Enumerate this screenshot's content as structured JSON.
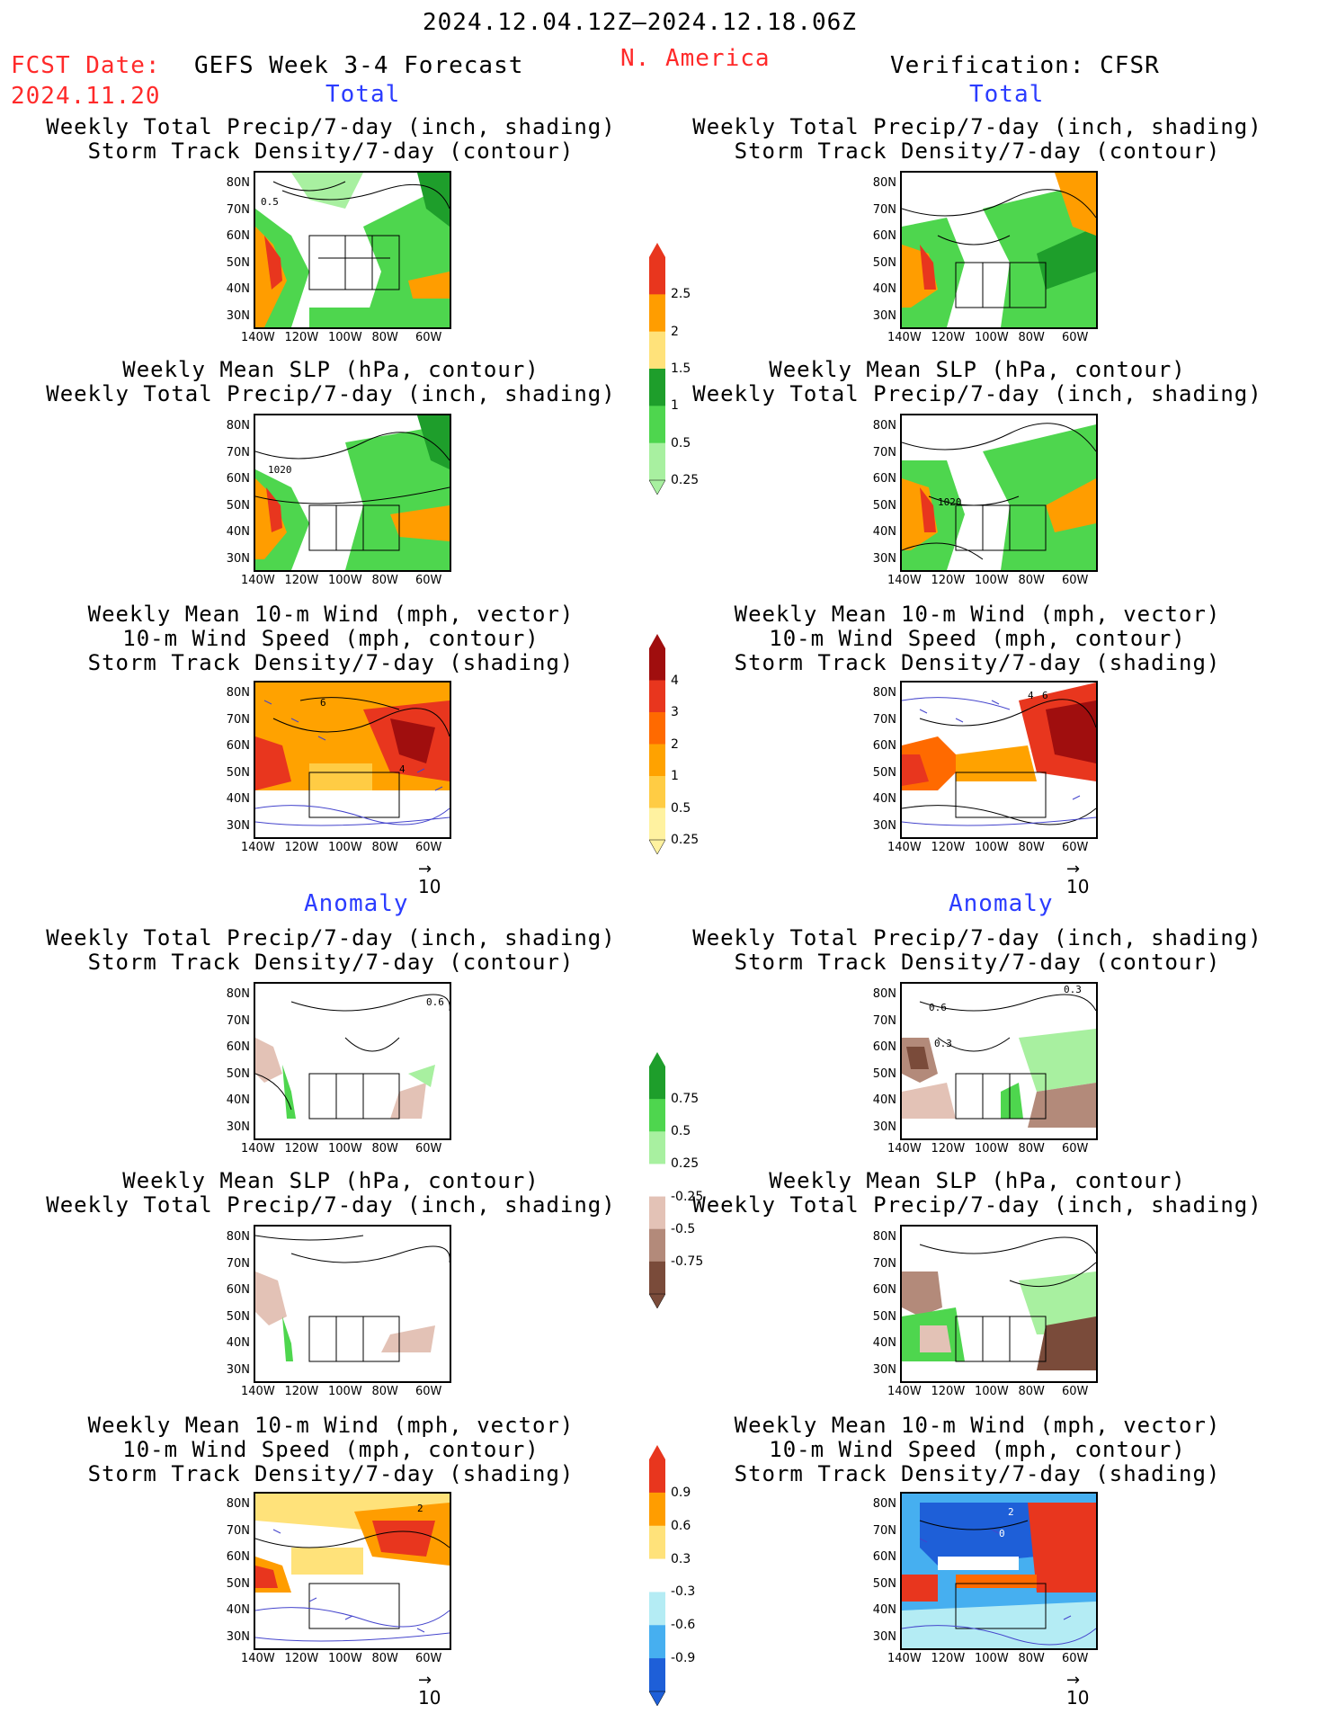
{
  "header": {
    "date_range": "2024.12.04.12Z–2024.12.18.06Z",
    "fcst_label": "FCST Date:",
    "fcst_date": "2024.11.20",
    "forecast_title": "GEFS Week 3-4 Forecast",
    "region": "N. America",
    "verification": "Verification: CFSR"
  },
  "sections": {
    "total": "Total",
    "anomaly": "Anomaly"
  },
  "titles": {
    "precip_storm": [
      "Weekly Total Precip/7-day (inch, shading)",
      "Storm Track Density/7-day (contour)"
    ],
    "slp_precip": [
      "Weekly Mean SLP (hPa, contour)",
      "Weekly Total Precip/7-day (inch, shading)"
    ],
    "wind_storm": [
      "Weekly Mean 10-m Wind (mph, vector)",
      "10-m Wind Speed (mph, contour)",
      "Storm Track Density/7-day (shading)"
    ]
  },
  "axes": {
    "lat": [
      "80N",
      "70N",
      "60N",
      "50N",
      "40N",
      "30N"
    ],
    "lon": [
      "140W",
      "120W",
      "100W",
      "80W",
      "60W"
    ]
  },
  "vector_ref": "10",
  "map_labels": {
    "fc_total_precip": "0.5",
    "fc_total_slp": "1020",
    "ob_total_slp": "1020",
    "fc_total_wind_a": "6",
    "fc_total_wind_b": "4",
    "ob_total_wind_a": "4",
    "ob_total_wind_b": "6",
    "fc_anom_precip": "0.6",
    "ob_anom_precip_a": "0.6",
    "ob_anom_precip_b": "0.3",
    "ob_anom_precip_c": "0.3",
    "fc_anom_wind": "2",
    "ob_anom_wind_a": "2",
    "ob_anom_wind_b": "0"
  },
  "colorbars": {
    "precip_total": {
      "labels": [
        "2.5",
        "2",
        "1.5",
        "1",
        "0.5",
        "0.25"
      ],
      "colors": [
        "#e8361e",
        "#ff9d00",
        "#ffe27a",
        "#1e9e2b",
        "#4ed64e",
        "#a8f0a0"
      ]
    },
    "storm_total": {
      "labels": [
        "4",
        "3",
        "2",
        "1",
        "0.5",
        "0.25"
      ],
      "colors": [
        "#a00e0e",
        "#e8361e",
        "#ff6a00",
        "#ffa200",
        "#ffcc44",
        "#fff2a0"
      ]
    },
    "precip_anom": {
      "labels": [
        "0.75",
        "0.5",
        "0.25",
        "-0.25",
        "-0.5",
        "-0.75"
      ],
      "colors": [
        "#1e9e2b",
        "#4ed64e",
        "#a8f0a0",
        "#ffffff",
        "#e3c2b6",
        "#b38a7a",
        "#7a4b3a"
      ]
    },
    "storm_anom": {
      "labels": [
        "0.9",
        "0.6",
        "0.3",
        "-0.3",
        "-0.6",
        "-0.9"
      ],
      "colors": [
        "#e8361e",
        "#ff9d00",
        "#ffe27a",
        "#ffffff",
        "#b4ecf4",
        "#46aff0",
        "#1e5fd8"
      ]
    }
  }
}
